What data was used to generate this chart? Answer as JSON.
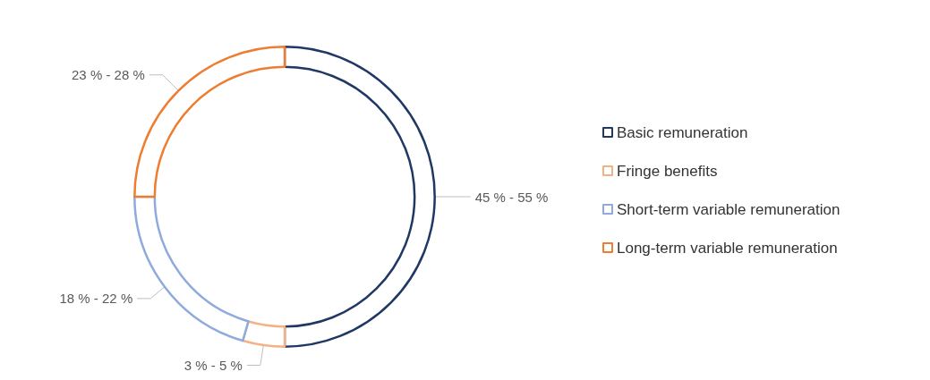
{
  "chart_data": {
    "type": "donut",
    "categories": [
      "Basic remuneration",
      "Fringe benefits",
      "Short-term variable remuneration",
      "Long-term variable remuneration"
    ],
    "values": [
      50,
      4.5,
      20.5,
      25
    ],
    "annotations": [
      {
        "text": "45 % - 55 %",
        "x": "Basic remuneration"
      },
      {
        "text": "3 % - 5 %",
        "x": "Fringe benefits"
      },
      {
        "text": "18 % - 22 %",
        "x": "Short-term variable remuneration"
      },
      {
        "text": "23 % - 28 %",
        "x": "Long-term variable remuneration"
      }
    ],
    "colors": [
      "#1f3864",
      "#f4b183",
      "#8faadc",
      "#ed7d31"
    ],
    "legend": "right"
  }
}
